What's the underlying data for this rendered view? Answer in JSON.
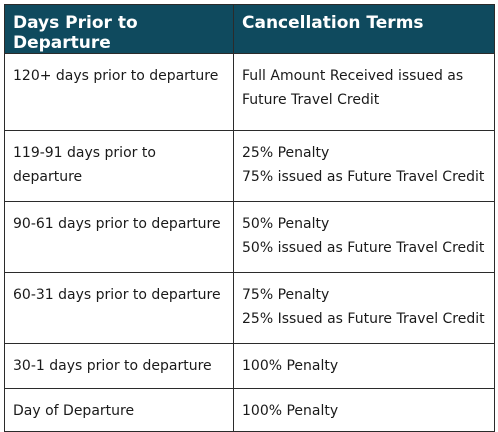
{
  "table": {
    "headers": [
      "Days Prior to Departure",
      "Cancellation Terms"
    ],
    "rows": [
      {
        "days": "120+ days prior to departure",
        "terms": [
          "Full Amount Received issued as",
          "Future Travel Credit"
        ]
      },
      {
        "days": "119-91 days prior to departure",
        "terms": [
          "25% Penalty",
          "75% issued as Future Travel Credit"
        ]
      },
      {
        "days": "90-61 days prior to departure",
        "terms": [
          "50% Penalty",
          "50% issued as Future Travel Credit"
        ]
      },
      {
        "days": "60-31 days prior to departure",
        "terms": [
          "75% Penalty",
          "25% Issued as Future Travel Credit"
        ]
      },
      {
        "days": "30-1 days prior to departure",
        "terms": [
          "100% Penalty"
        ]
      },
      {
        "days": "Day of Departure",
        "terms": [
          "100% Penalty"
        ]
      }
    ]
  },
  "colors": {
    "header_bg": "#0f4a5e",
    "header_text": "#ffffff",
    "border": "#2b2b2b"
  }
}
